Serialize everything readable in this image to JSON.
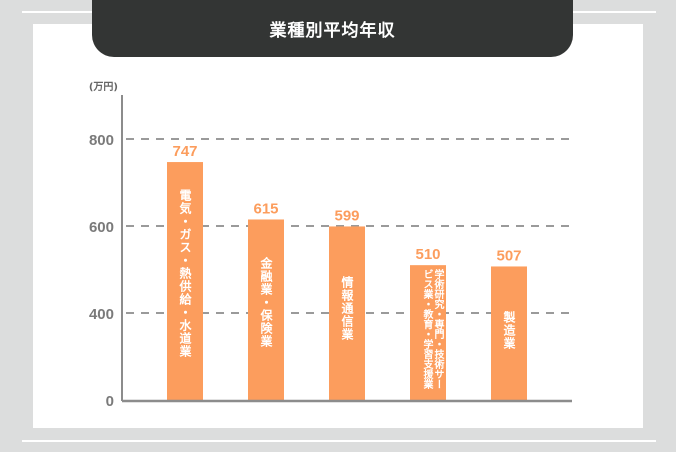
{
  "header": {
    "title": "業種別平均年収"
  },
  "chart_data": {
    "type": "bar",
    "title": "業種別平均年収",
    "ylabel": "(万円)",
    "categories": [
      "電気・ガス・熱供給・水道業",
      "金融業・保険業",
      "情報通信業",
      "学術研究・専門・技術サービス業・教育・学習支援業",
      "製造業"
    ],
    "values": [
      747,
      615,
      599,
      510,
      507
    ],
    "data_labels": [
      "747",
      "615",
      "599",
      "510",
      "507"
    ],
    "yticks": [
      0,
      400,
      600,
      800
    ],
    "ytick_labels": [
      "0",
      "400",
      "600",
      "800"
    ],
    "axis_break": "0-400 compressed",
    "grid": "dashed horizontal",
    "colors": {
      "bar": "#fc9d5d",
      "label": "#fc9d5d",
      "axis": "#8c8c8c",
      "grid": "#9a9a9a",
      "header": "#333534",
      "background": "#dcdddd"
    }
  }
}
